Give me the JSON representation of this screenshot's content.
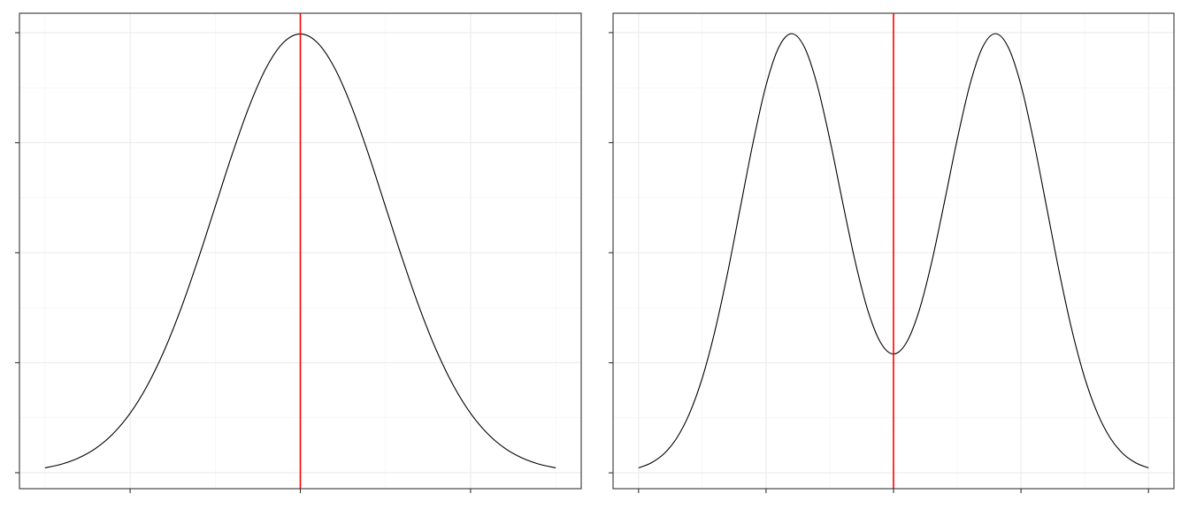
{
  "chart_data": [
    {
      "type": "line",
      "title": "",
      "xlabel": "",
      "ylabel": "",
      "xlim": [
        -3.3,
        3.3
      ],
      "ylim": [
        -0.0145,
        0.4177
      ],
      "x_ticks": [
        -2,
        0,
        2
      ],
      "y_ticks": [
        0,
        0.1,
        0.2,
        0.3,
        0.4
      ],
      "tick_labels_shown": false,
      "grid": true,
      "vline": {
        "x": 0,
        "color": "#ff0000"
      },
      "line_color": "#000000",
      "series": [
        {
          "x": [
            -3,
            -2.8,
            -2.6,
            -2.4,
            -2.2,
            -2,
            -1.8,
            -1.6,
            -1.4,
            -1.2,
            -1,
            -0.8,
            -0.6,
            -0.4,
            -0.2,
            0,
            0.2,
            0.4,
            0.6,
            0.8,
            1,
            1.2,
            1.4,
            1.6,
            1.8,
            2,
            2.2,
            2.4,
            2.6,
            2.8,
            3
          ],
          "y": [
            0.0044,
            0.0079,
            0.0136,
            0.0224,
            0.0355,
            0.054,
            0.079,
            0.1109,
            0.1497,
            0.1942,
            0.242,
            0.2897,
            0.3332,
            0.3683,
            0.391,
            0.3989,
            0.391,
            0.3683,
            0.3332,
            0.2897,
            0.242,
            0.1942,
            0.1497,
            0.1109,
            0.079,
            0.054,
            0.0355,
            0.0224,
            0.0136,
            0.0079,
            0.0044
          ]
        }
      ]
    },
    {
      "type": "line",
      "title": "",
      "xlabel": "",
      "ylabel": "",
      "xlim": [
        -4.4,
        4.4
      ],
      "ylim": [
        -0.009,
        0.261
      ],
      "x_ticks": [
        -4,
        -2,
        0,
        2,
        4
      ],
      "y_ticks": [
        0,
        0.0625,
        0.125,
        0.1875,
        0.25
      ],
      "tick_labels_shown": false,
      "grid": true,
      "vline": {
        "x": 0,
        "color": "#ff0000"
      },
      "line_color": "#000000",
      "series": [
        {
          "x": [
            -4,
            -3.8,
            -3.6,
            -3.4,
            -3.2,
            -3,
            -2.8,
            -2.6,
            -2.4,
            -2.2,
            -2,
            -1.8,
            -1.6,
            -1.4,
            -1.2,
            -1,
            -0.8,
            -0.6,
            -0.4,
            -0.2,
            0,
            0.2,
            0.4,
            0.6,
            0.8,
            1,
            1.2,
            1.4,
            1.6,
            1.8,
            2,
            2.2,
            2.4,
            2.6,
            2.8,
            3,
            3.2,
            3.4,
            3.6,
            3.8,
            4
          ],
          "y": [
            0.0028,
            0.0057,
            0.0109,
            0.0198,
            0.0338,
            0.0539,
            0.0809,
            0.1141,
            0.1513,
            0.1882,
            0.2201,
            0.2417,
            0.2494,
            0.2419,
            0.2206,
            0.1894,
            0.154,
            0.1198,
            0.0919,
            0.0738,
            0.0675,
            0.0738,
            0.0919,
            0.1198,
            0.154,
            0.1894,
            0.2206,
            0.2419,
            0.2494,
            0.2417,
            0.2201,
            0.1882,
            0.1513,
            0.1141,
            0.0809,
            0.0539,
            0.0338,
            0.0198,
            0.0109,
            0.0057,
            0.0028
          ]
        }
      ]
    }
  ]
}
